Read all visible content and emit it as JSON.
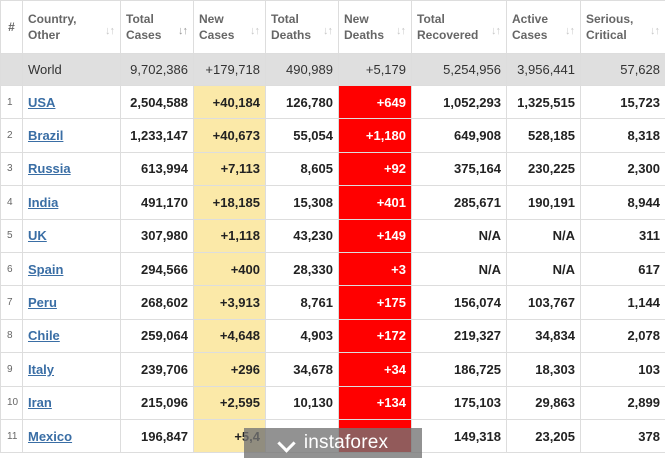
{
  "header": {
    "idx": "#",
    "columns": [
      {
        "key": "country",
        "label": "Country, Other"
      },
      {
        "key": "total_cases",
        "label": "Total Cases"
      },
      {
        "key": "new_cases",
        "label": "New Cases"
      },
      {
        "key": "total_deaths",
        "label": "Total Deaths"
      },
      {
        "key": "new_deaths",
        "label": "New Deaths"
      },
      {
        "key": "total_recovered",
        "label": "Total Recovered"
      },
      {
        "key": "active_cases",
        "label": "Active Cases"
      },
      {
        "key": "serious",
        "label": "Serious, Critical"
      }
    ],
    "sort_glyph": "↓↑",
    "sort_glyph_active": "↓↑"
  },
  "world": {
    "country": "World",
    "total_cases": "9,702,386",
    "new_cases": "+179,718",
    "total_deaths": "490,989",
    "new_deaths": "+5,179",
    "total_recovered": "5,254,956",
    "active_cases": "3,956,441",
    "serious": "57,628"
  },
  "rows": [
    {
      "idx": "1",
      "country": "USA",
      "total_cases": "2,504,588",
      "new_cases": "+40,184",
      "total_deaths": "126,780",
      "new_deaths": "+649",
      "total_recovered": "1,052,293",
      "active_cases": "1,325,515",
      "serious": "15,723"
    },
    {
      "idx": "2",
      "country": "Brazil",
      "total_cases": "1,233,147",
      "new_cases": "+40,673",
      "total_deaths": "55,054",
      "new_deaths": "+1,180",
      "total_recovered": "649,908",
      "active_cases": "528,185",
      "serious": "8,318"
    },
    {
      "idx": "3",
      "country": "Russia",
      "total_cases": "613,994",
      "new_cases": "+7,113",
      "total_deaths": "8,605",
      "new_deaths": "+92",
      "total_recovered": "375,164",
      "active_cases": "230,225",
      "serious": "2,300"
    },
    {
      "idx": "4",
      "country": "India",
      "total_cases": "491,170",
      "new_cases": "+18,185",
      "total_deaths": "15,308",
      "new_deaths": "+401",
      "total_recovered": "285,671",
      "active_cases": "190,191",
      "serious": "8,944"
    },
    {
      "idx": "5",
      "country": "UK",
      "total_cases": "307,980",
      "new_cases": "+1,118",
      "total_deaths": "43,230",
      "new_deaths": "+149",
      "total_recovered": "N/A",
      "active_cases": "N/A",
      "serious": "311"
    },
    {
      "idx": "6",
      "country": "Spain",
      "total_cases": "294,566",
      "new_cases": "+400",
      "total_deaths": "28,330",
      "new_deaths": "+3",
      "total_recovered": "N/A",
      "active_cases": "N/A",
      "serious": "617"
    },
    {
      "idx": "7",
      "country": "Peru",
      "total_cases": "268,602",
      "new_cases": "+3,913",
      "total_deaths": "8,761",
      "new_deaths": "+175",
      "total_recovered": "156,074",
      "active_cases": "103,767",
      "serious": "1,144"
    },
    {
      "idx": "8",
      "country": "Chile",
      "total_cases": "259,064",
      "new_cases": "+4,648",
      "total_deaths": "4,903",
      "new_deaths": "+172",
      "total_recovered": "219,327",
      "active_cases": "34,834",
      "serious": "2,078"
    },
    {
      "idx": "9",
      "country": "Italy",
      "total_cases": "239,706",
      "new_cases": "+296",
      "total_deaths": "34,678",
      "new_deaths": "+34",
      "total_recovered": "186,725",
      "active_cases": "18,303",
      "serious": "103"
    },
    {
      "idx": "10",
      "country": "Iran",
      "total_cases": "215,096",
      "new_cases": "+2,595",
      "total_deaths": "10,130",
      "new_deaths": "+134",
      "total_recovered": "175,103",
      "active_cases": "29,863",
      "serious": "2,899"
    },
    {
      "idx": "11",
      "country": "Mexico",
      "total_cases": "196,847",
      "new_cases": "+5,4",
      "total_deaths": "",
      "new_deaths": "",
      "total_recovered": "149,318",
      "active_cases": "23,205",
      "serious": "378"
    }
  ],
  "watermark": {
    "text": "instaforex"
  }
}
